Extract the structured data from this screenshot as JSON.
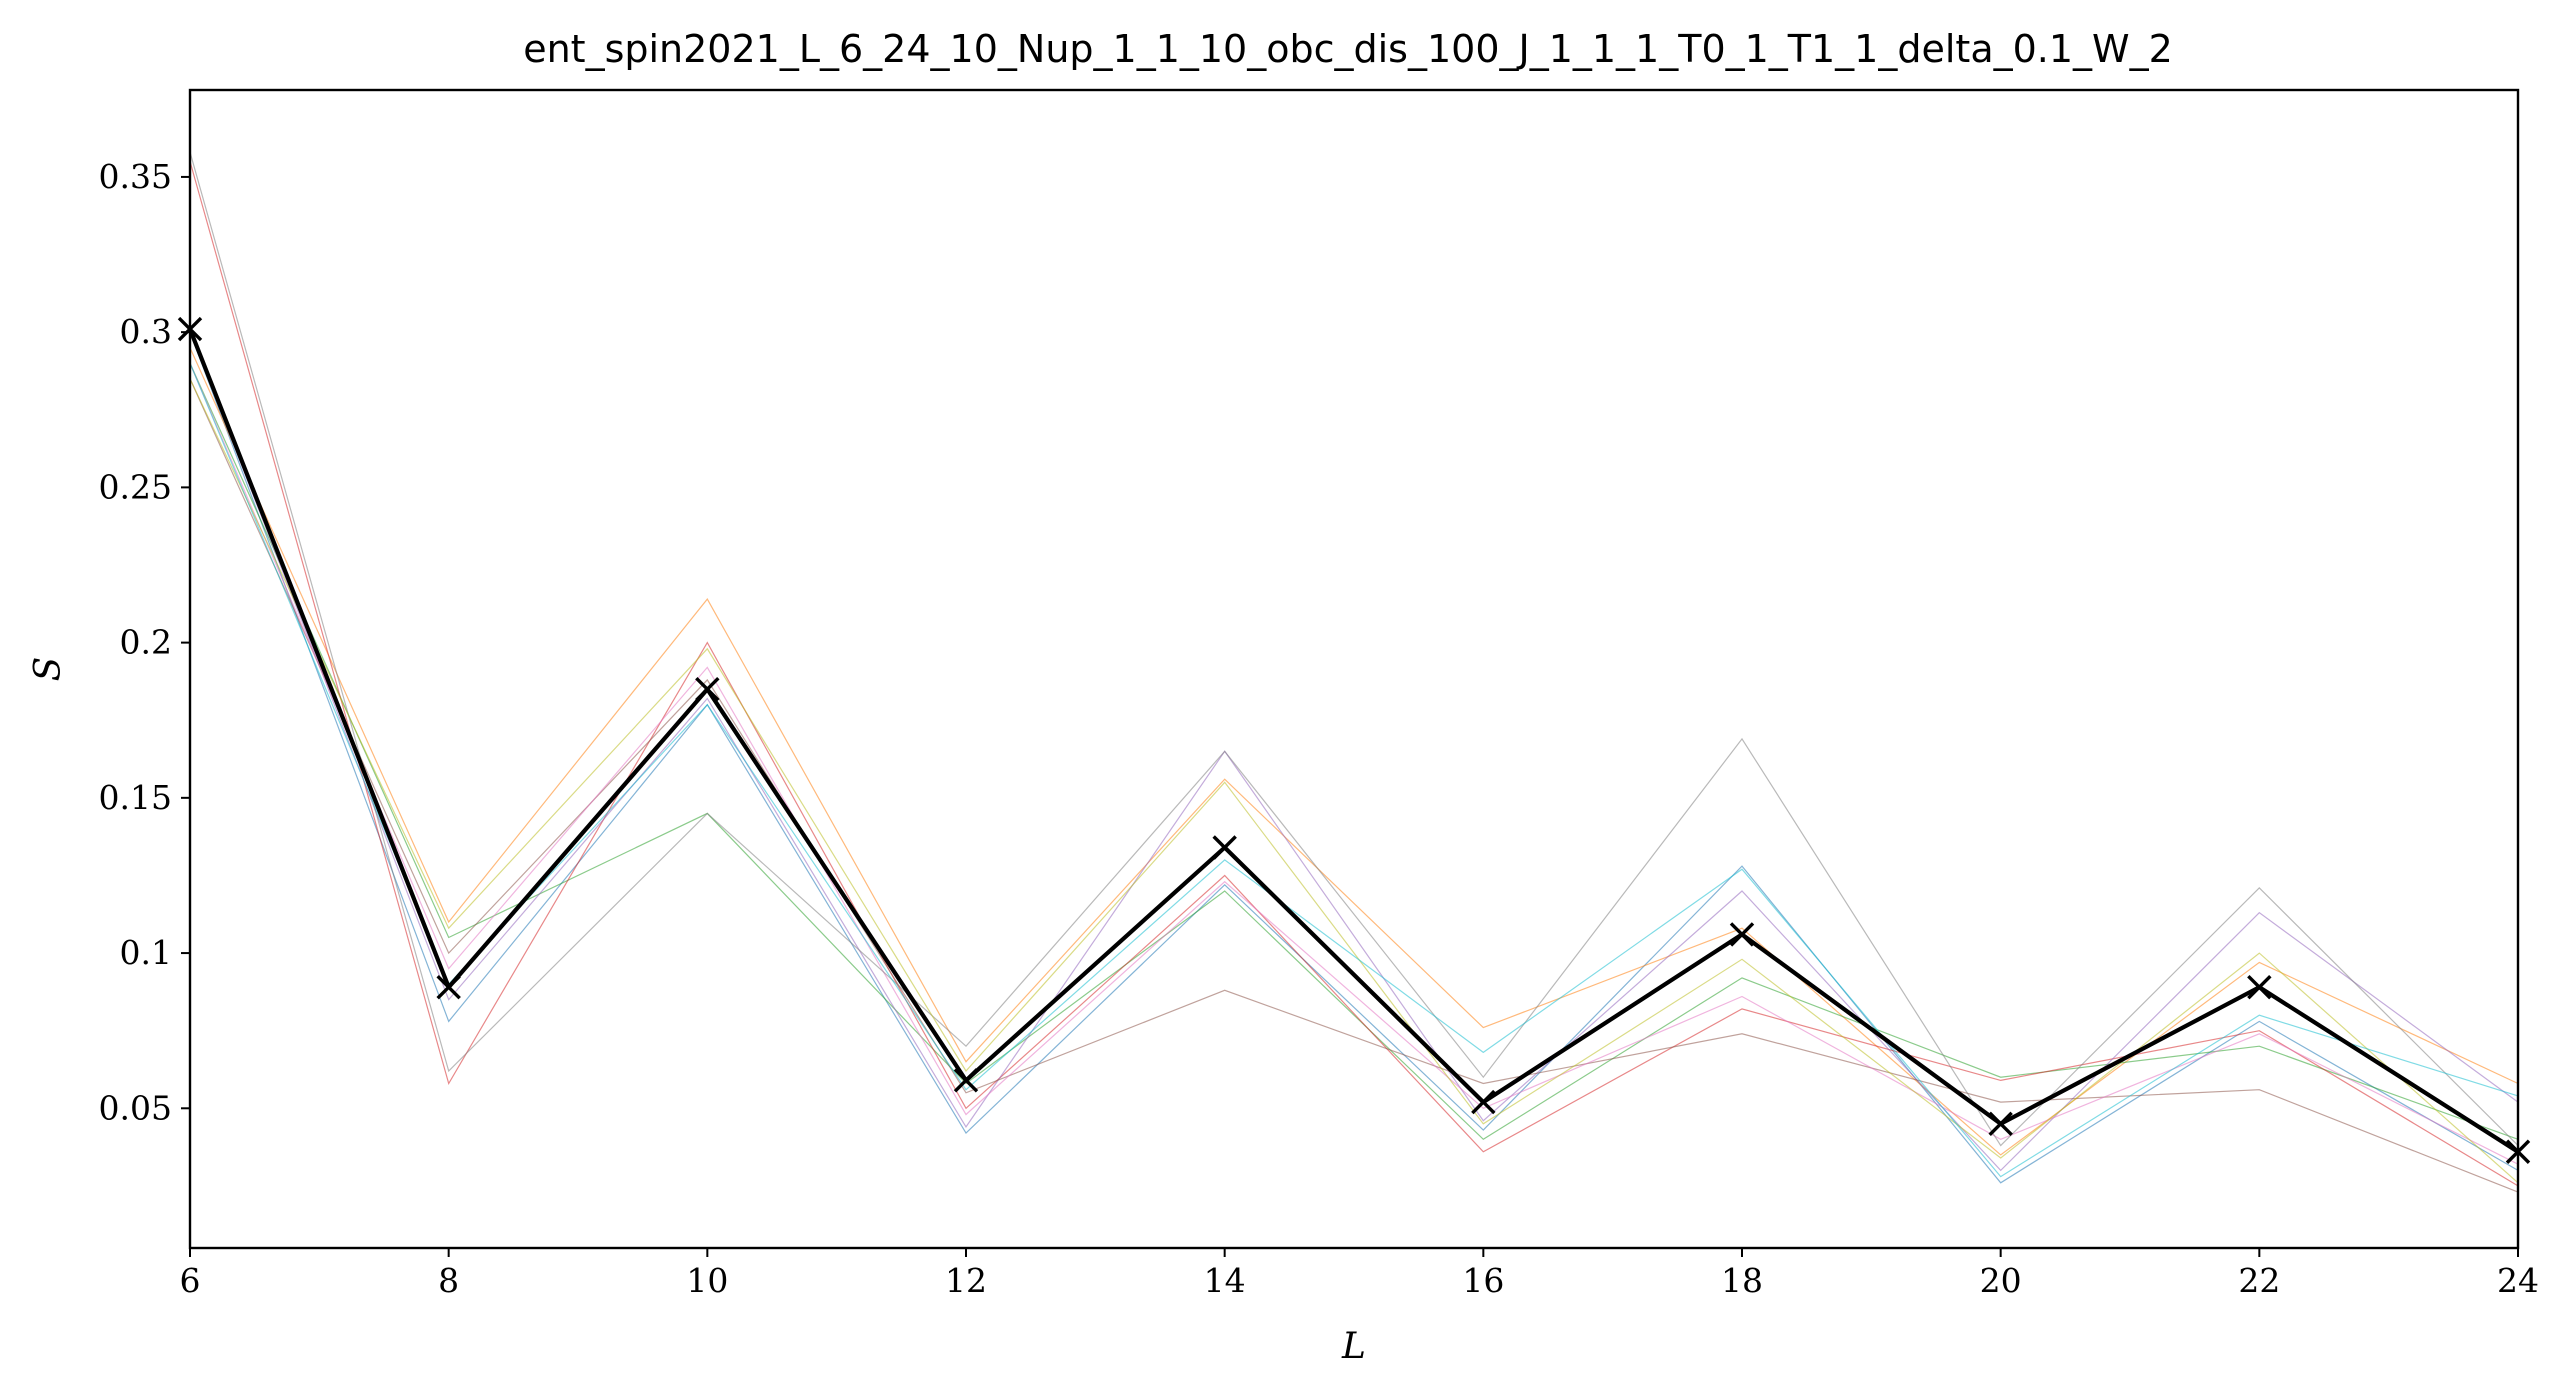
{
  "chart_data": {
    "type": "line",
    "title": "ent_spin2021_L_6_24_10_Nup_1_1_10_obc_dis_100_J_1_1_1_T0_1_T1_1_delta_0.1_W_2",
    "xlabel": "L",
    "ylabel": "S",
    "xlim": [
      6,
      24
    ],
    "ylim": [
      0.005,
      0.378
    ],
    "x": [
      6,
      8,
      10,
      12,
      14,
      16,
      18,
      20,
      22,
      24
    ],
    "xticks": [
      "6",
      "8",
      "10",
      "12",
      "14",
      "16",
      "18",
      "20",
      "22",
      "24"
    ],
    "yticks": [
      {
        "value": 0.05,
        "label": "0.05"
      },
      {
        "value": 0.1,
        "label": "0.1"
      },
      {
        "value": 0.15,
        "label": "0.15"
      },
      {
        "value": 0.2,
        "label": "0.2"
      },
      {
        "value": 0.25,
        "label": "0.25"
      },
      {
        "value": 0.3,
        "label": "0.3"
      },
      {
        "value": 0.35,
        "label": "0.35"
      }
    ],
    "grid": false,
    "mean_series": {
      "color": "#000000",
      "marker": "x",
      "values": [
        0.301,
        0.089,
        0.185,
        0.059,
        0.134,
        0.052,
        0.106,
        0.045,
        0.089,
        0.036
      ]
    },
    "series": [
      {
        "color": "#1f77b4",
        "values": [
          0.3,
          0.078,
          0.18,
          0.042,
          0.122,
          0.043,
          0.128,
          0.026,
          0.078,
          0.03
        ]
      },
      {
        "color": "#ff7f0e",
        "values": [
          0.295,
          0.11,
          0.214,
          0.065,
          0.156,
          0.076,
          0.108,
          0.035,
          0.097,
          0.058
        ]
      },
      {
        "color": "#2ca02c",
        "values": [
          0.29,
          0.105,
          0.145,
          0.058,
          0.12,
          0.04,
          0.092,
          0.06,
          0.07,
          0.04
        ]
      },
      {
        "color": "#d62728",
        "values": [
          0.355,
          0.058,
          0.2,
          0.05,
          0.125,
          0.036,
          0.082,
          0.059,
          0.075,
          0.025
        ]
      },
      {
        "color": "#9467bd",
        "values": [
          0.3,
          0.085,
          0.182,
          0.044,
          0.165,
          0.046,
          0.12,
          0.03,
          0.113,
          0.052
        ]
      },
      {
        "color": "#8c564b",
        "values": [
          0.285,
          0.1,
          0.188,
          0.055,
          0.088,
          0.058,
          0.074,
          0.052,
          0.056,
          0.023
        ]
      },
      {
        "color": "#e377c2",
        "values": [
          0.29,
          0.095,
          0.192,
          0.048,
          0.123,
          0.05,
          0.086,
          0.04,
          0.074,
          0.032
        ]
      },
      {
        "color": "#7f7f7f",
        "values": [
          0.358,
          0.062,
          0.145,
          0.07,
          0.165,
          0.06,
          0.169,
          0.038,
          0.121,
          0.038
        ]
      },
      {
        "color": "#bcbd22",
        "values": [
          0.285,
          0.108,
          0.198,
          0.062,
          0.155,
          0.045,
          0.098,
          0.034,
          0.1,
          0.026
        ]
      },
      {
        "color": "#17becf",
        "values": [
          0.29,
          0.09,
          0.18,
          0.056,
          0.13,
          0.068,
          0.127,
          0.028,
          0.08,
          0.054
        ]
      }
    ]
  }
}
